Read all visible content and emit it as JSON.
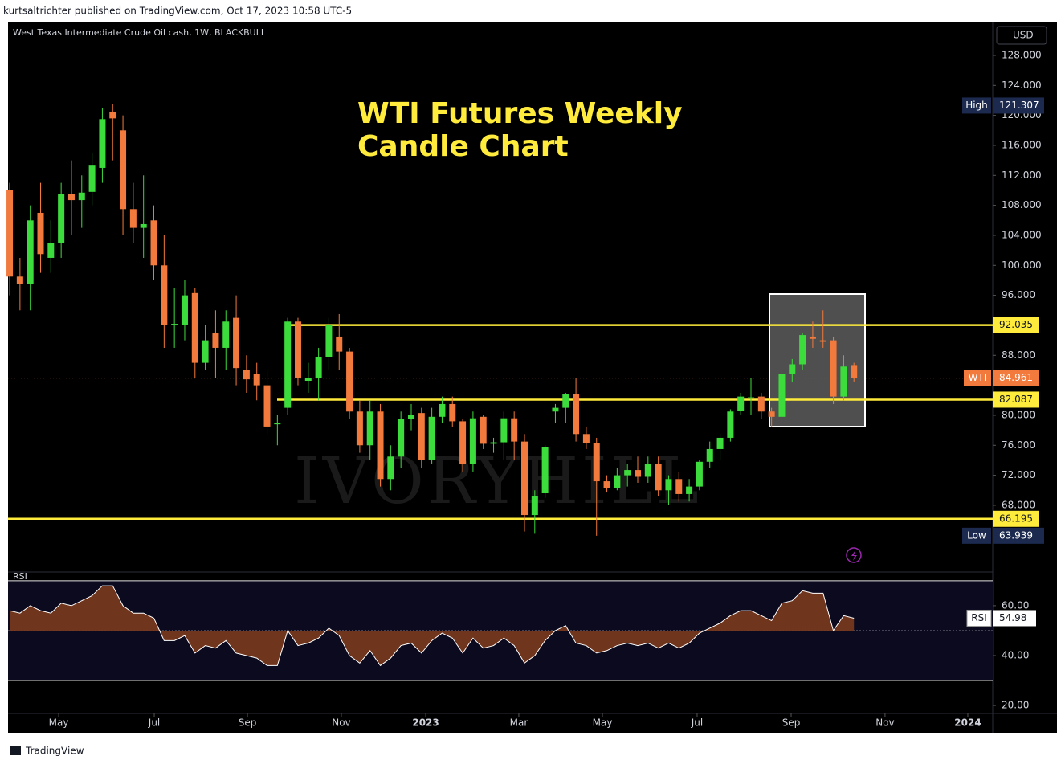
{
  "header": "kurtsaltrichter published on TradingView.com, Oct 17, 2023 10:58 UTC-5",
  "footer": "TradingView",
  "chart_data": {
    "type": "candlestick",
    "symbol": "West Texas Intermediate Crude Oil cash, 1W, BLACKBULL",
    "title": [
      "WTI Futures Weekly",
      "Candle Chart"
    ],
    "watermark": "IVORYHILL",
    "currency": "USD",
    "up_color": "#3ddc3d",
    "down_color": "#f27a3c",
    "open": [
      110,
      98.5,
      97.5,
      107,
      101,
      103,
      109.5,
      108.7,
      109.8,
      113,
      120.5,
      118,
      107.5,
      105,
      106,
      100,
      92,
      92,
      96.3,
      87,
      91,
      89,
      93,
      86,
      85.5,
      84,
      78.8,
      81,
      92.5,
      84.6,
      85,
      87.8,
      90.5,
      88.5,
      80.5,
      76,
      80.5,
      71.5,
      74.5,
      79.5,
      80.3,
      74,
      79.8,
      81.5,
      79.2,
      73.5,
      79.8,
      76.2,
      76.4,
      79.6,
      76.5,
      66.7,
      69.6,
      80.5,
      81,
      82.8,
      77.5,
      76.3,
      71.2,
      70.3,
      72,
      72.7,
      71.8,
      73.5,
      70,
      71.5,
      69.5,
      70.5,
      73.8,
      75.5,
      77,
      80.6,
      82.3,
      82.5,
      80.5,
      79.8,
      85.5,
      86.8,
      90.5,
      90,
      90,
      82.5,
      86.7
    ],
    "high": [
      111,
      101,
      108,
      111,
      106,
      111,
      114,
      112,
      115,
      121,
      121.5,
      120,
      111,
      112,
      108,
      104,
      97,
      98,
      97,
      92,
      94,
      94,
      96,
      88,
      87,
      86,
      80,
      93,
      93,
      87,
      89,
      93,
      93.5,
      89,
      82,
      82,
      81.5,
      76,
      80.5,
      81.5,
      81,
      81,
      82.5,
      82.5,
      79.5,
      80.5,
      80,
      77,
      80.5,
      80.5,
      77.5,
      70,
      76,
      81.5,
      83,
      85,
      78.5,
      77,
      72,
      73,
      73.5,
      74.5,
      74.5,
      74.5,
      72,
      72.5,
      71.5,
      74,
      76.5,
      77.5,
      80.8,
      83,
      85,
      83,
      81,
      86,
      87.5,
      91,
      92.5,
      94,
      90.5,
      88,
      87
    ],
    "low": [
      96,
      94,
      94,
      99,
      99,
      101,
      104,
      105,
      108,
      111,
      114,
      104,
      103,
      101,
      98,
      89,
      89,
      90,
      85,
      86,
      85,
      86,
      84,
      83,
      82,
      77.5,
      76,
      80,
      84,
      83,
      82,
      86,
      86,
      79.5,
      75,
      74,
      70.5,
      70,
      73,
      78,
      73,
      73.5,
      79,
      78.5,
      72.5,
      72.5,
      75.5,
      75,
      74,
      74,
      64.5,
      64.2,
      69,
      79,
      79,
      76.5,
      75.5,
      63.939,
      69.7,
      70,
      70.5,
      71,
      71,
      69.2,
      68,
      68.5,
      68.5,
      70,
      73,
      74,
      76.5,
      80,
      80,
      79.5,
      78.5,
      79,
      84.5,
      86,
      89,
      89,
      81.5,
      82,
      84.5
    ],
    "close": [
      98.5,
      97.5,
      106,
      101.5,
      103,
      109.5,
      108.7,
      109.7,
      113.3,
      119.5,
      119.6,
      107.5,
      105,
      105.5,
      100,
      92,
      92.2,
      96,
      87,
      90,
      89,
      92.5,
      86.3,
      84.8,
      84,
      78.5,
      79,
      92.5,
      85,
      85,
      87.8,
      92,
      88.5,
      80.5,
      76,
      80.5,
      71.5,
      74.5,
      79.5,
      80,
      74,
      79.8,
      81.5,
      79.2,
      73.5,
      79.6,
      76.2,
      76.4,
      79.6,
      76.5,
      66.7,
      69.2,
      75.8,
      81,
      82.8,
      77.5,
      76.3,
      71.2,
      70.3,
      72,
      72.7,
      71.8,
      73.5,
      70,
      71.5,
      69.5,
      70.5,
      73.8,
      75.5,
      77,
      80.5,
      82.5,
      82.4,
      80.5,
      79.8,
      85.5,
      86.8,
      90.7,
      90.2,
      89.8,
      82.5,
      86.5,
      84.961
    ],
    "xlim": [
      -0.16,
      95.48
    ],
    "xticks": [
      {
        "value": 4.76,
        "label": "May"
      },
      {
        "value": 14.04,
        "label": "Jul"
      },
      {
        "value": 23.09,
        "label": "Sep"
      },
      {
        "value": 32.21,
        "label": "Nov"
      },
      {
        "value": 40.41,
        "label": "2023"
      },
      {
        "value": 49.45,
        "label": "Mar"
      },
      {
        "value": 57.57,
        "label": "May"
      },
      {
        "value": 66.77,
        "label": "Jul"
      },
      {
        "value": 75.9,
        "label": "Sep"
      },
      {
        "value": 85.02,
        "label": "Nov"
      },
      {
        "value": 93.06,
        "label": "2024"
      }
    ],
    "ylim": [
      59.1,
      132.39
    ],
    "yticks": [
      {
        "value": 128,
        "label": "128.000"
      },
      {
        "value": 124,
        "label": "124.000"
      },
      {
        "value": 120,
        "label": "120.000"
      },
      {
        "value": 116,
        "label": "116.000"
      },
      {
        "value": 112,
        "label": "112.000"
      },
      {
        "value": 108,
        "label": "108.000"
      },
      {
        "value": 104,
        "label": "104.000"
      },
      {
        "value": 100,
        "label": "100.000"
      },
      {
        "value": 96,
        "label": "96.000"
      },
      {
        "value": 88,
        "label": "88.000"
      },
      {
        "value": 80,
        "label": "80.000"
      },
      {
        "value": 76,
        "label": "76.000"
      },
      {
        "value": 72,
        "label": "72.000"
      },
      {
        "value": 68,
        "label": "68.000"
      }
    ],
    "levels": [
      92.035,
      82.087,
      66.195
    ],
    "level_color": "#ffeb3b",
    "last": {
      "name": "WTI",
      "value": 84.961
    },
    "range_labels": [
      {
        "name": "High",
        "value": 121.307
      },
      {
        "name": "Low",
        "value": 63.939
      }
    ],
    "rsi": {
      "name": "RSI",
      "color": "#ffffff",
      "fill": "#7b3a1d",
      "values": [
        58,
        57,
        60,
        58,
        57,
        61,
        60,
        62,
        64,
        68,
        68,
        60,
        57,
        57,
        55,
        46,
        46,
        48,
        41,
        44,
        43,
        46,
        41,
        40,
        39,
        36,
        36,
        50,
        44,
        45,
        47,
        51,
        48,
        40,
        37,
        42,
        36,
        39,
        44,
        45,
        41,
        46,
        49,
        47,
        41,
        47,
        43,
        44,
        47,
        44,
        37,
        40,
        46,
        50,
        52,
        45,
        44,
        41,
        42,
        44,
        45,
        44,
        45,
        43,
        45,
        43,
        45,
        49,
        51,
        53,
        56,
        58,
        58,
        56,
        54,
        61,
        62,
        66,
        65,
        65,
        50,
        56,
        54.98
      ],
      "ylim": [
        16.8,
        73.5
      ],
      "yticks": [
        {
          "value": 60,
          "label": "60.00"
        },
        {
          "value": 40,
          "label": "40.00"
        },
        {
          "value": 20,
          "label": "20.00"
        }
      ],
      "bands": [
        70,
        30
      ],
      "mid": 50
    }
  }
}
